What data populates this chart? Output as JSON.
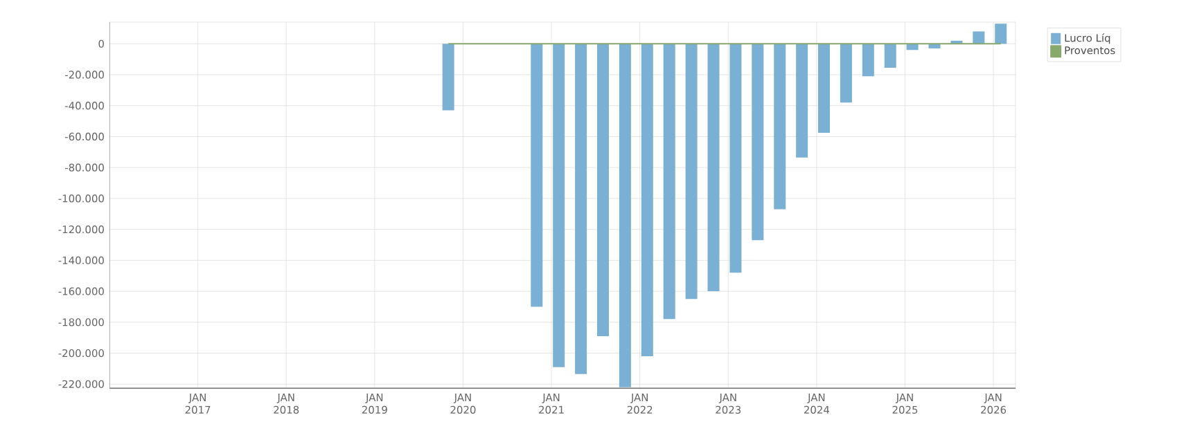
{
  "chart_data": {
    "type": "bar",
    "x": [
      "2019-11",
      "2020-11",
      "2021-02",
      "2021-05",
      "2021-08",
      "2021-11",
      "2022-02",
      "2022-05",
      "2022-08",
      "2022-11",
      "2023-02",
      "2023-05",
      "2023-08",
      "2023-11",
      "2024-02",
      "2024-05",
      "2024-08",
      "2024-11",
      "2025-02",
      "2025-05",
      "2025-08",
      "2025-11",
      "2026-02"
    ],
    "series": [
      {
        "name": "Lucro Líq",
        "color": "#7ab0d3",
        "values": [
          -43000,
          -170000,
          -209000,
          -213500,
          -189000,
          -222000,
          -202000,
          -178000,
          -165000,
          -160000,
          -148000,
          -127000,
          -107000,
          -73500,
          -57500,
          -38000,
          -21000,
          -15500,
          -4000,
          -3000,
          2000,
          8000,
          13000
        ]
      },
      {
        "name": "Proventos",
        "type": "line",
        "color": "#87a96b",
        "values": [
          0,
          0,
          0,
          0,
          0,
          0,
          0,
          0,
          0,
          0,
          0,
          0,
          0,
          0,
          0,
          0,
          0,
          0,
          0,
          0,
          0,
          0,
          0
        ]
      }
    ],
    "xlim": [
      "2016-01",
      "2026-04"
    ],
    "xticks": [
      {
        "value": "2017-01",
        "label": "JAN 2017"
      },
      {
        "value": "2018-01",
        "label": "JAN 2018"
      },
      {
        "value": "2019-01",
        "label": "JAN 2019"
      },
      {
        "value": "2020-01",
        "label": "JAN 2020"
      },
      {
        "value": "2021-01",
        "label": "JAN 2021"
      },
      {
        "value": "2022-01",
        "label": "JAN 2022"
      },
      {
        "value": "2023-01",
        "label": "JAN 2023"
      },
      {
        "value": "2024-01",
        "label": "JAN 2024"
      },
      {
        "value": "2025-01",
        "label": "JAN 2025"
      },
      {
        "value": "2026-01",
        "label": "JAN 2026"
      }
    ],
    "ylim": [
      -223000,
      14000
    ],
    "yticks": [
      0,
      {
        "value": -20000,
        "label": "-20.000"
      },
      {
        "value": -40000,
        "label": "-40.000"
      },
      {
        "value": -60000,
        "label": "-60.000"
      },
      {
        "value": -80000,
        "label": "-80.000"
      },
      {
        "value": -100000,
        "label": "-100.000"
      },
      {
        "value": -120000,
        "label": "-120.000"
      },
      {
        "value": -140000,
        "label": "-140.000"
      },
      {
        "value": -160000,
        "label": "-160.000"
      },
      {
        "value": -180000,
        "label": "-180.000"
      },
      {
        "value": -200000,
        "label": "-200.000"
      },
      {
        "value": -220000,
        "label": "-220.000"
      }
    ],
    "grid": true,
    "legend": "top right"
  }
}
